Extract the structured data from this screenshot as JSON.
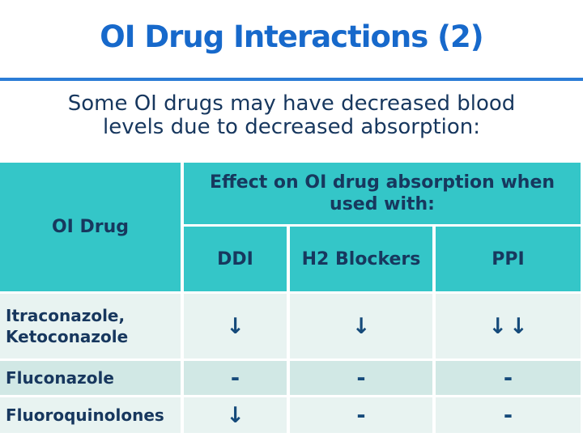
{
  "slide": {
    "title": "OI Drug Interactions (2)",
    "subtitle_lines": [
      "Some OI drugs may have decreased blood",
      "levels due to decreased absorption:"
    ]
  },
  "table": {
    "corner_header": "OI Drug",
    "merged_header": "Effect on OI drug absorption when used with:",
    "columns": [
      "DDI",
      "H2 Blockers",
      "PPI"
    ],
    "rows": [
      {
        "drug": "Itraconazole, Ketoconazole",
        "values": [
          "↓",
          "↓",
          "↓↓"
        ]
      },
      {
        "drug": "Fluconazole",
        "values": [
          "-",
          "-",
          "-"
        ]
      },
      {
        "drug": "Fluoroquinolones",
        "values": [
          "↓",
          "-",
          "-"
        ]
      }
    ]
  },
  "colors": {
    "title_blue": "#1769cb",
    "divider_blue": "#2b7cd6",
    "header_teal": "#34c6c8",
    "text_navy": "#17375e",
    "row_light": "#e8f3f1",
    "row_alt": "#d1e8e5"
  }
}
